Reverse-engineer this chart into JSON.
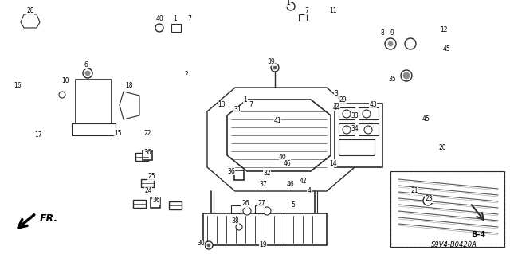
{
  "background_color": "#f0f0f0",
  "fig_width": 6.4,
  "fig_height": 3.19,
  "dpi": 100,
  "line_color": "#2a2a2a",
  "text_color": "#000000",
  "diagram_ref": "S9V4-B0420A",
  "section_ref": "B-4",
  "fr_label": "FR.",
  "image_bg": "#e8e8e8"
}
